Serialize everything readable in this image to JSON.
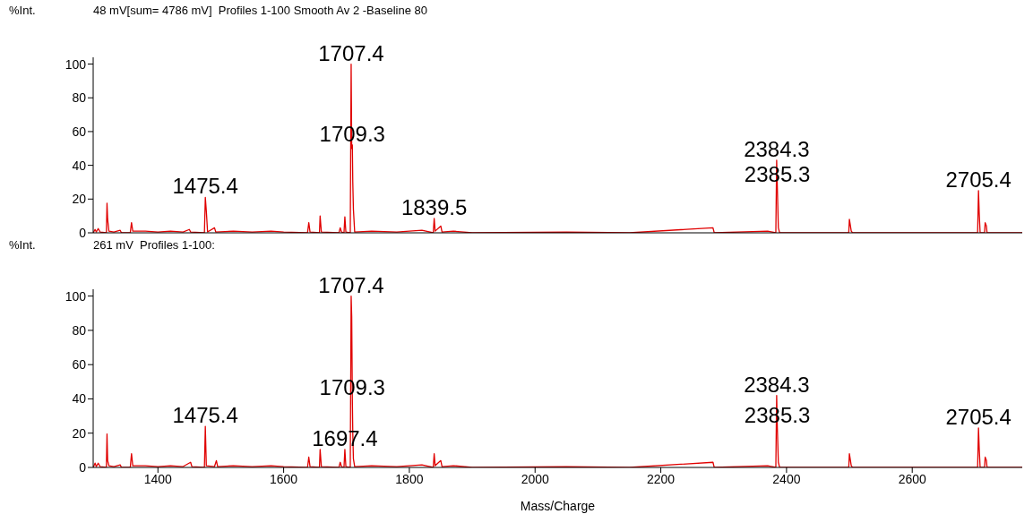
{
  "chart_data": [
    {
      "type": "line",
      "title": "48 mV[sum= 4786 mV]  Profiles 1-100 Smooth Av 2 -Baseline 80",
      "ylabel": "%Int.",
      "color": "#e00000",
      "xlim": [
        1297,
        2775
      ],
      "xticks": [
        1400,
        1600,
        1800,
        2000,
        2200,
        2400,
        2600
      ],
      "ylim": [
        0,
        104
      ],
      "yticks": [
        0,
        20,
        40,
        60,
        80,
        100
      ],
      "tick_labels": "y",
      "grid": false,
      "marker": "none",
      "x": [
        1297,
        1300,
        1302,
        1305,
        1308,
        1318,
        1319,
        1320,
        1322,
        1330,
        1340,
        1342,
        1356,
        1358,
        1360,
        1380,
        1400,
        1420,
        1440,
        1450,
        1452,
        1474,
        1475.4,
        1477,
        1479,
        1490,
        1492,
        1520,
        1550,
        1580,
        1600,
        1638,
        1640,
        1642,
        1657,
        1658,
        1660,
        1688,
        1690,
        1692,
        1696,
        1697.4,
        1699,
        1706,
        1707.4,
        1708.3,
        1709.3,
        1710,
        1711,
        1713,
        1740,
        1780,
        1820,
        1838,
        1839.5,
        1841,
        1850,
        1852,
        1870,
        1900,
        2050,
        2150,
        2283,
        2285,
        2370,
        2383,
        2384.3,
        2385.3,
        2387,
        2389,
        2499,
        2500,
        2503,
        2505,
        2704,
        2705.4,
        2706.5,
        2708,
        2715,
        2716,
        2718,
        2719,
        2775
      ],
      "values": [
        0,
        2,
        0.5,
        2.5,
        0.5,
        0,
        17.5,
        8,
        1,
        0.5,
        1.5,
        0,
        0,
        6,
        1,
        1,
        0.5,
        1,
        0.5,
        2,
        0.5,
        0,
        21,
        13,
        0.5,
        3,
        0.5,
        1,
        0.5,
        1,
        0.5,
        0,
        6,
        0.5,
        0,
        10,
        0.5,
        0,
        3,
        0.5,
        0,
        9.5,
        0.5,
        0,
        100,
        50,
        52,
        30,
        14,
        0.5,
        1,
        0.5,
        1.5,
        0,
        8.5,
        1,
        4,
        0.5,
        1,
        0,
        0.5,
        0,
        3,
        0,
        1,
        0,
        43,
        28,
        3,
        0,
        0,
        8,
        1,
        0,
        0,
        25,
        12,
        0,
        0,
        6,
        4,
        0,
        0
      ],
      "annotations": [
        {
          "text": "1707.4",
          "x": 1707.4,
          "y": 100
        },
        {
          "text": "1709.3",
          "x": 1709.3,
          "y": 52
        },
        {
          "text": "1475.4",
          "x": 1475.4,
          "y": 21
        },
        {
          "text": "1839.5",
          "x": 1839.5,
          "y": 8.5
        },
        {
          "text": "2384.3",
          "x": 2384.3,
          "y": 43
        },
        {
          "text": "2385.3",
          "x": 2385.3,
          "y": 28
        },
        {
          "text": "2705.4",
          "x": 2705.4,
          "y": 25
        }
      ]
    },
    {
      "type": "line",
      "title": "261 mV  Profiles 1-100:",
      "ylabel": "%Int.",
      "xlabel": "Mass/Charge",
      "color": "#e00000",
      "xlim": [
        1297,
        2775
      ],
      "xticks": [
        1400,
        1600,
        1800,
        2000,
        2200,
        2400,
        2600
      ],
      "ylim": [
        0,
        104
      ],
      "yticks": [
        0,
        20,
        40,
        60,
        80,
        100
      ],
      "grid": false,
      "marker": "none",
      "x": [
        1297,
        1300,
        1302,
        1305,
        1308,
        1318,
        1319,
        1320,
        1322,
        1330,
        1340,
        1342,
        1356,
        1358,
        1360,
        1380,
        1400,
        1420,
        1440,
        1452,
        1454,
        1474,
        1475.4,
        1477,
        1490,
        1493,
        1495,
        1520,
        1550,
        1580,
        1600,
        1638,
        1640,
        1642,
        1657,
        1658,
        1660,
        1688,
        1690,
        1692,
        1696,
        1697.4,
        1699,
        1706,
        1707.4,
        1708.3,
        1709.3,
        1710,
        1711,
        1713,
        1740,
        1780,
        1820,
        1838,
        1839.5,
        1841,
        1850,
        1852,
        1870,
        1900,
        2050,
        2150,
        2283,
        2285,
        2370,
        2383,
        2384.3,
        2385.3,
        2387,
        2389,
        2499,
        2500,
        2503,
        2505,
        2704,
        2705.4,
        2706.5,
        2708,
        2715,
        2716,
        2718,
        2719,
        2775
      ],
      "values": [
        0,
        2.5,
        0.5,
        2.5,
        0.5,
        0,
        19.5,
        4,
        1,
        0.5,
        1.5,
        0,
        0,
        8,
        1,
        1,
        0.5,
        1,
        0.5,
        3,
        0.5,
        0,
        24,
        1,
        0.5,
        4,
        0.5,
        1,
        0.5,
        1,
        0.5,
        0,
        6,
        0.5,
        0,
        10.5,
        0.5,
        0,
        3,
        0.5,
        0,
        10.5,
        0.5,
        0,
        100,
        88,
        40,
        20,
        5,
        0.5,
        1,
        0.5,
        1.5,
        0,
        8,
        1,
        4,
        0.5,
        1,
        0,
        0.5,
        0,
        3,
        0,
        1,
        0,
        42,
        24,
        3,
        0,
        0,
        8,
        1,
        0,
        0,
        23,
        11.5,
        0,
        0,
        6,
        4,
        0,
        0
      ],
      "annotations": [
        {
          "text": "1707.4",
          "x": 1707.4,
          "y": 100
        },
        {
          "text": "1709.3",
          "x": 1709.3,
          "y": 40
        },
        {
          "text": "1475.4",
          "x": 1475.4,
          "y": 24
        },
        {
          "text": "1697.4",
          "x": 1697.4,
          "y": 10.5
        },
        {
          "text": "2384.3",
          "x": 2384.3,
          "y": 42
        },
        {
          "text": "2385.3",
          "x": 2385.3,
          "y": 24
        },
        {
          "text": "2705.4",
          "x": 2705.4,
          "y": 23
        }
      ]
    }
  ]
}
